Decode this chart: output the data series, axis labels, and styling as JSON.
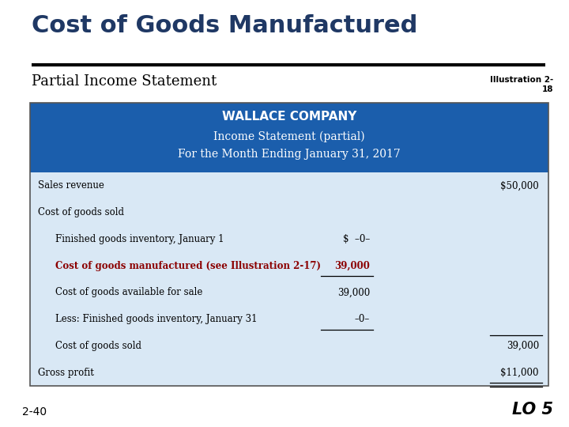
{
  "title": "Cost of Goods Manufactured",
  "subtitle": "Partial Income Statement",
  "illustration_label": "Illustration 2-\n18",
  "company_name": "WALLACE COMPANY",
  "statement_line1": "Income Statement (partial)",
  "statement_line2": "For the Month Ending January 31, 2017",
  "header_bg": "#1B5EAC",
  "table_bg": "#D9E8F5",
  "table_border": "#555555",
  "title_color": "#1F3864",
  "rows": [
    {
      "label": "Sales revenue",
      "indent": 0,
      "col1": "",
      "col2": "$50,000",
      "bold": false,
      "color": "#000000",
      "ul_col1": false,
      "ul_col2": false,
      "dbl_col2": false
    },
    {
      "label": "Cost of goods sold",
      "indent": 0,
      "col1": "",
      "col2": "",
      "bold": false,
      "color": "#000000",
      "ul_col1": false,
      "ul_col2": false,
      "dbl_col2": false
    },
    {
      "label": "Finished goods inventory, January 1",
      "indent": 1,
      "col1": "$  –0–",
      "col2": "",
      "bold": false,
      "color": "#000000",
      "ul_col1": false,
      "ul_col2": false,
      "dbl_col2": false
    },
    {
      "label": "Cost of goods manufactured (see Illustration 2-17)",
      "indent": 1,
      "col1": "39,000",
      "col2": "",
      "bold": true,
      "color": "#8B0000",
      "ul_col1": true,
      "ul_col2": false,
      "dbl_col2": false
    },
    {
      "label": "Cost of goods available for sale",
      "indent": 1,
      "col1": "39,000",
      "col2": "",
      "bold": false,
      "color": "#000000",
      "ul_col1": false,
      "ul_col2": false,
      "dbl_col2": false
    },
    {
      "label": "Less: Finished goods inventory, January 31",
      "indent": 1,
      "col1": "–0–",
      "col2": "",
      "bold": false,
      "color": "#000000",
      "ul_col1": true,
      "ul_col2": false,
      "dbl_col2": false
    },
    {
      "label": "Cost of goods sold",
      "indent": 1,
      "col1": "",
      "col2": "39,000",
      "bold": false,
      "color": "#000000",
      "ul_col1": false,
      "ul_col2": false,
      "dbl_col2": false
    },
    {
      "label": "Gross profit",
      "indent": 0,
      "col1": "",
      "col2": "$11,000",
      "bold": false,
      "color": "#000000",
      "ul_col1": false,
      "ul_col2": true,
      "dbl_col2": true
    }
  ],
  "footer_left": "2-40",
  "footer_right": "LO 5",
  "bg_color": "#FFFFFF"
}
